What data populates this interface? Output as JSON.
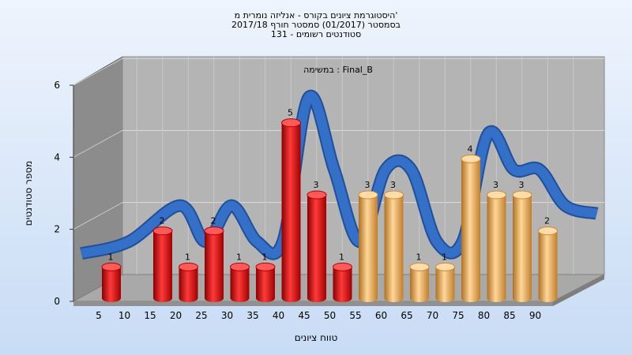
{
  "title": {
    "line1": "היסטוגרמת ציונים בקורס - אנליזה נומרית מ'",
    "line2": "בסמסטר  (01/2017)  סמסטר חורף 2017/18",
    "line3": "סטודנטים רשומים - 131"
  },
  "chart_data": {
    "type": "bar",
    "title": "במשימה : Final_B",
    "xlabel": "טווח ציונים",
    "ylabel": "מספר סטודנטים",
    "x_ticks": [
      "5",
      "10",
      "15",
      "20",
      "25",
      "30",
      "35",
      "40",
      "45",
      "50",
      "55",
      "60",
      "65",
      "70",
      "75",
      "80",
      "85",
      "90"
    ],
    "y_ticks": [
      "0",
      "2",
      "4",
      "6"
    ],
    "ylim": [
      0,
      6
    ],
    "categories": [
      "5",
      "15",
      "20",
      "25",
      "30",
      "35",
      "40",
      "45",
      "50",
      "55",
      "60",
      "65",
      "70",
      "75",
      "80",
      "85",
      "90"
    ],
    "values": [
      1,
      2,
      1,
      2,
      1,
      1,
      5,
      3,
      1,
      3,
      3,
      1,
      1,
      4,
      3,
      3,
      2
    ],
    "bar_colors": [
      "red",
      "red",
      "red",
      "red",
      "red",
      "red",
      "red",
      "red",
      "red",
      "orange",
      "orange",
      "orange",
      "orange",
      "orange",
      "orange",
      "orange",
      "orange"
    ],
    "trend_line": true,
    "grid": true,
    "colors": {
      "red": "#e01818",
      "orange": "#f0b050",
      "trend": "#3570c8",
      "wall": "#b5b5b5"
    }
  }
}
